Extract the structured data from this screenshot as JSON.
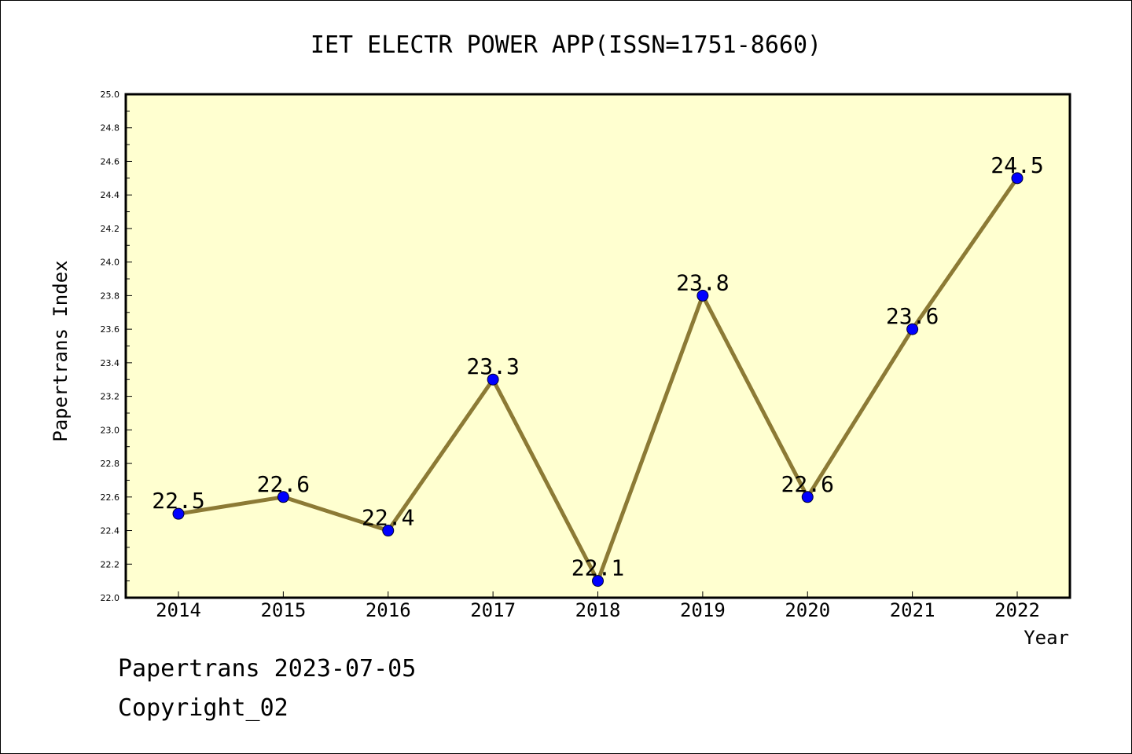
{
  "chart_data": {
    "type": "line",
    "title": "IET ELECTR POWER APP(ISSN=1751-8660)",
    "xlabel": "Year",
    "ylabel": "Papertrans Index",
    "categories": [
      "2014",
      "2015",
      "2016",
      "2017",
      "2018",
      "2019",
      "2020",
      "2021",
      "2022"
    ],
    "series": [
      {
        "values": [
          22.5,
          22.6,
          22.4,
          23.3,
          22.1,
          23.8,
          22.6,
          23.6,
          24.5
        ]
      }
    ],
    "data_labels": [
      "22.5",
      "22.6",
      "22.4",
      "23.3",
      "22.1",
      "23.8",
      "22.6",
      "23.6",
      "24.5"
    ],
    "ylim": [
      22.0,
      25.0
    ],
    "y_ticks": [
      "22.0",
      "22.2",
      "22.4",
      "22.6",
      "22.8",
      "23.0",
      "23.2",
      "23.4",
      "23.6",
      "23.8",
      "24.0",
      "24.2",
      "24.4",
      "24.6",
      "24.8",
      "25.0"
    ],
    "grid": false,
    "colors": {
      "plot_background": "#ffffd0",
      "line": "#8c7a35",
      "marker": "#0000ff"
    }
  },
  "footer": {
    "source_date": "Papertrans 2023-07-05",
    "copyright": "Copyright_02"
  }
}
